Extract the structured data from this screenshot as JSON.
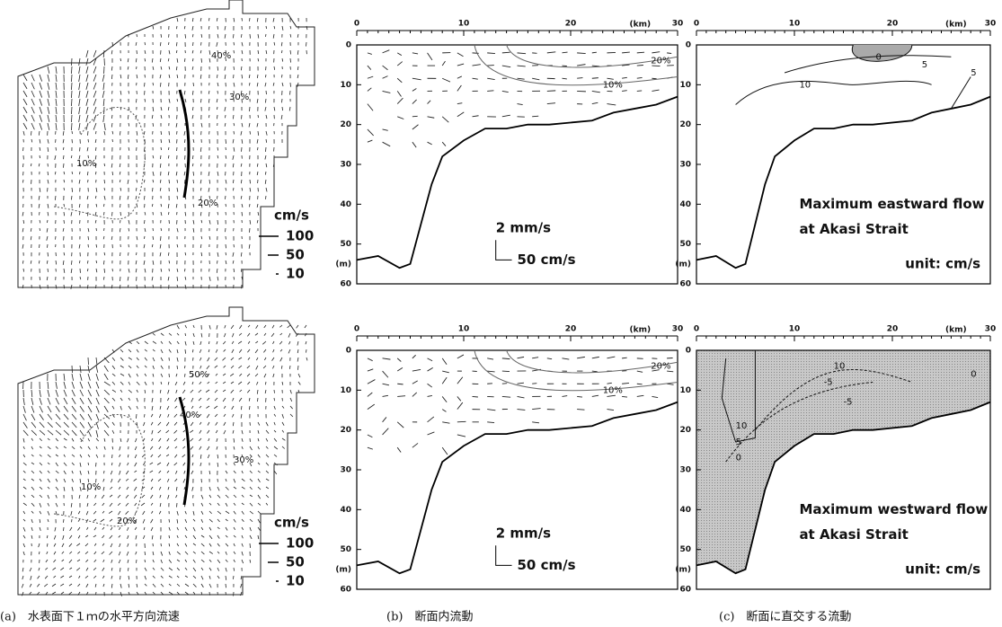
{
  "axes": {
    "x_ticks": [
      0,
      10,
      20,
      30
    ],
    "x_unit": "(km)",
    "xlim": [
      0,
      30
    ],
    "y_ticks": [
      0,
      10,
      20,
      30,
      40,
      50,
      60
    ],
    "y_unit": "(m)",
    "ylim": [
      0,
      60
    ]
  },
  "rows": [
    {
      "map": {
        "contour_labels": [
          "40%",
          "30%",
          "10%",
          "20%"
        ],
        "scale_unit": "cm/s",
        "scale_values": [
          100,
          50,
          10
        ]
      },
      "in_section": {
        "contour_labels": [
          "20%",
          "10%"
        ],
        "scale_vertical": "2 mm/s",
        "scale_horizontal": "50 cm/s"
      },
      "normal": {
        "contour_labels": [
          "0",
          "5",
          "10",
          "5"
        ],
        "title_lines": [
          "Maximum eastward flow",
          "at Akasi Strait"
        ],
        "unit": "unit: cm/s"
      }
    },
    {
      "map": {
        "contour_labels": [
          "50%",
          "40%",
          "30%",
          "10%",
          "20%"
        ],
        "scale_unit": "cm/s",
        "scale_values": [
          100,
          50,
          10
        ]
      },
      "in_section": {
        "contour_labels": [
          "20%",
          "10%"
        ],
        "scale_vertical": "2 mm/s",
        "scale_horizontal": "50 cm/s"
      },
      "normal": {
        "contour_labels": [
          "10",
          "-5",
          "-5",
          "10",
          "5",
          "0",
          "0"
        ],
        "title_lines": [
          "Maximum westward flow",
          "at Akasi Strait"
        ],
        "unit": "unit: cm/s"
      }
    }
  ],
  "captions": [
    "(a)　水表面下１ｍの水平方向流速",
    "(b)　断面内流動",
    "(c)　断面に直交する流動"
  ]
}
